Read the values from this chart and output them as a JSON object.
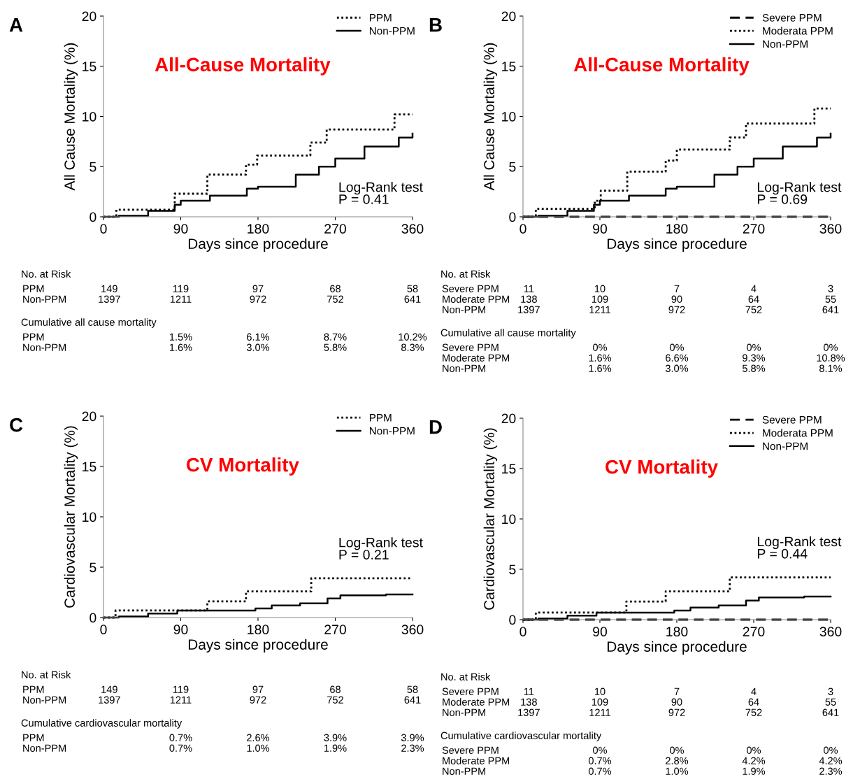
{
  "chart_data": [
    {
      "type": "step",
      "title": "All-Cause Mortality",
      "xlabel": "Days since procedure",
      "ylabel": "All Cause Mortality (%)",
      "xlim": [
        0,
        360
      ],
      "xticks": [
        0,
        90,
        180,
        270,
        360
      ],
      "ylim": [
        0,
        20
      ],
      "yticks": [
        0,
        5,
        10,
        15,
        20
      ],
      "grid": false,
      "legend": "top right",
      "series": [
        {
          "name": "PPM",
          "color": "#000000",
          "line_style": "dotted",
          "x": [
            0,
            15,
            83,
            121,
            166,
            179,
            241,
            260,
            339,
            360
          ],
          "values": [
            0,
            0.7,
            2.3,
            4.2,
            5.2,
            6.1,
            7.4,
            8.7,
            10.2,
            10.2
          ]
        },
        {
          "name": "Non-PPM",
          "color": "#000000",
          "line_style": "solid",
          "x": [
            0,
            18,
            52,
            83,
            90,
            124,
            167,
            180,
            224,
            251,
            270,
            304,
            344,
            360
          ],
          "values": [
            0,
            0.1,
            0.6,
            1.2,
            1.6,
            2.1,
            2.8,
            3.0,
            4.2,
            5.0,
            5.8,
            7.0,
            7.9,
            8.3
          ]
        }
      ],
      "annotations": [
        "A",
        "Log-Rank test\nP = 0.41",
        "No. at Risk",
        "PPM\t149\t119\t97\t68\t58",
        "Non-PPM\t1397\t1211\t972\t752\t641",
        "Cumulative all cause mortality",
        "PPM\t\t1.5%\t6.1%\t8.7%\t10.2%",
        "Non-PPM\t\t1.6%\t3.0%\t5.8%\t8.3%"
      ]
    },
    {
      "type": "step",
      "title": "All-Cause Mortality",
      "xlabel": "Days since procedure",
      "ylabel": "All Cause Mortality (%)",
      "xlim": [
        0,
        360
      ],
      "xticks": [
        0,
        90,
        180,
        270,
        360
      ],
      "ylim": [
        0,
        20
      ],
      "yticks": [
        0,
        5,
        10,
        15,
        20
      ],
      "grid": false,
      "legend": "top right",
      "series": [
        {
          "name": "Severe PPM",
          "color": "#000000",
          "line_style": "dashed",
          "x": [
            0,
            360
          ],
          "values": [
            0,
            0
          ]
        },
        {
          "name": "Moderata PPM",
          "color": "#000000",
          "line_style": "dotted",
          "x": [
            0,
            15,
            84,
            91,
            122,
            167,
            180,
            242,
            261,
            341,
            360
          ],
          "values": [
            0,
            0.8,
            1.6,
            2.6,
            4.5,
            5.6,
            6.7,
            7.9,
            9.3,
            10.8,
            10.8
          ]
        },
        {
          "name": "Non-PPM",
          "color": "#000000",
          "line_style": "solid",
          "x": [
            0,
            18,
            52,
            83,
            90,
            124,
            167,
            180,
            224,
            251,
            270,
            304,
            344,
            360
          ],
          "values": [
            0,
            0.1,
            0.6,
            1.2,
            1.6,
            2.1,
            2.8,
            3.0,
            4.2,
            5.0,
            5.8,
            7.0,
            7.9,
            8.3
          ]
        }
      ],
      "annotations": [
        "B",
        "Log-Rank test\nP = 0.69",
        "No. at Risk",
        "Severe PPM\t11\t10\t7\t4\t3",
        "Moderate PPM\t138\t109\t90\t64\t55",
        "Non-PPM\t1397\t1211\t972\t752\t641",
        "Cumulative all cause mortality",
        "Severe PPM\t\t0%\t0%\t0%\t0%",
        "Moderate PPM\t\t1.6%\t6.6%\t9.3%\t10.8%",
        "Non-PPM\t\t1.6%\t3.0%\t5.8%\t8.1%"
      ]
    },
    {
      "type": "step",
      "title": "CV Mortality",
      "xlabel": "Days since procedure",
      "ylabel": "Cardiovascular Mortality (%)",
      "xlim": [
        0,
        360
      ],
      "xticks": [
        0,
        90,
        180,
        270,
        360
      ],
      "ylim": [
        0,
        20
      ],
      "yticks": [
        0,
        5,
        10,
        15,
        20
      ],
      "grid": false,
      "legend": "top right",
      "series": [
        {
          "name": "PPM",
          "color": "#000000",
          "line_style": "dotted",
          "x": [
            0,
            14,
            121,
            166,
            242,
            360
          ],
          "values": [
            0,
            0.7,
            1.6,
            2.6,
            3.9,
            3.9
          ]
        },
        {
          "name": "Non-PPM",
          "color": "#000000",
          "line_style": "solid",
          "x": [
            0,
            18,
            52,
            86,
            177,
            196,
            229,
            261,
            276,
            329,
            360
          ],
          "values": [
            0,
            0.1,
            0.4,
            0.7,
            0.9,
            1.2,
            1.4,
            1.9,
            2.2,
            2.3,
            2.3
          ]
        }
      ],
      "annotations": [
        "C",
        "Log-Rank test\nP = 0.21",
        "No. at Risk",
        "PPM\t149\t119\t97\t68\t58",
        "Non-PPM\t1397\t1211\t972\t752\t641",
        "Cumulative cardiovascular mortality",
        "PPM\t\t0.7%\t2.6%\t3.9%\t3.9%",
        "Non-PPM\t\t0.7%\t1.0%\t1.9%\t2.3%"
      ]
    },
    {
      "type": "step",
      "title": "CV Mortality",
      "xlabel": "Days since procedure",
      "ylabel": "Cardiovascular Mortality (%)",
      "xlim": [
        0,
        360
      ],
      "xticks": [
        0,
        90,
        180,
        270,
        360
      ],
      "ylim": [
        0,
        20
      ],
      "yticks": [
        0,
        5,
        10,
        15,
        20
      ],
      "grid": false,
      "legend": "top right",
      "series": [
        {
          "name": "Severe PPM",
          "color": "#000000",
          "line_style": "dashed",
          "x": [
            0,
            360
          ],
          "values": [
            0,
            0
          ]
        },
        {
          "name": "Moderata PPM",
          "color": "#000000",
          "line_style": "dotted",
          "x": [
            0,
            15,
            121,
            167,
            242,
            360
          ],
          "values": [
            0,
            0.7,
            1.8,
            2.8,
            4.2,
            4.2
          ]
        },
        {
          "name": "Non-PPM",
          "color": "#000000",
          "line_style": "solid",
          "x": [
            0,
            18,
            52,
            86,
            177,
            196,
            229,
            261,
            276,
            329,
            360
          ],
          "values": [
            0,
            0.1,
            0.4,
            0.7,
            0.9,
            1.2,
            1.4,
            1.9,
            2.2,
            2.3,
            2.3
          ]
        }
      ],
      "annotations": [
        "D",
        "Log-Rank test\nP = 0.44",
        "No. at Risk",
        "Severe PPM\t11\t10\t7\t4\t3",
        "Moderate PPM\t138\t109\t90\t64\t55",
        "Non-PPM\t1397\t1211\t972\t752\t641",
        "Cumulative cardiovascular mortality",
        "Severe PPM\t\t0%\t0%\t0%\t0%",
        "Moderate PPM\t\t0.7%\t2.8%\t4.2%\t4.2%",
        "Non-PPM\t\t0.7%\t1.0%\t1.9%\t2.3%"
      ]
    }
  ]
}
